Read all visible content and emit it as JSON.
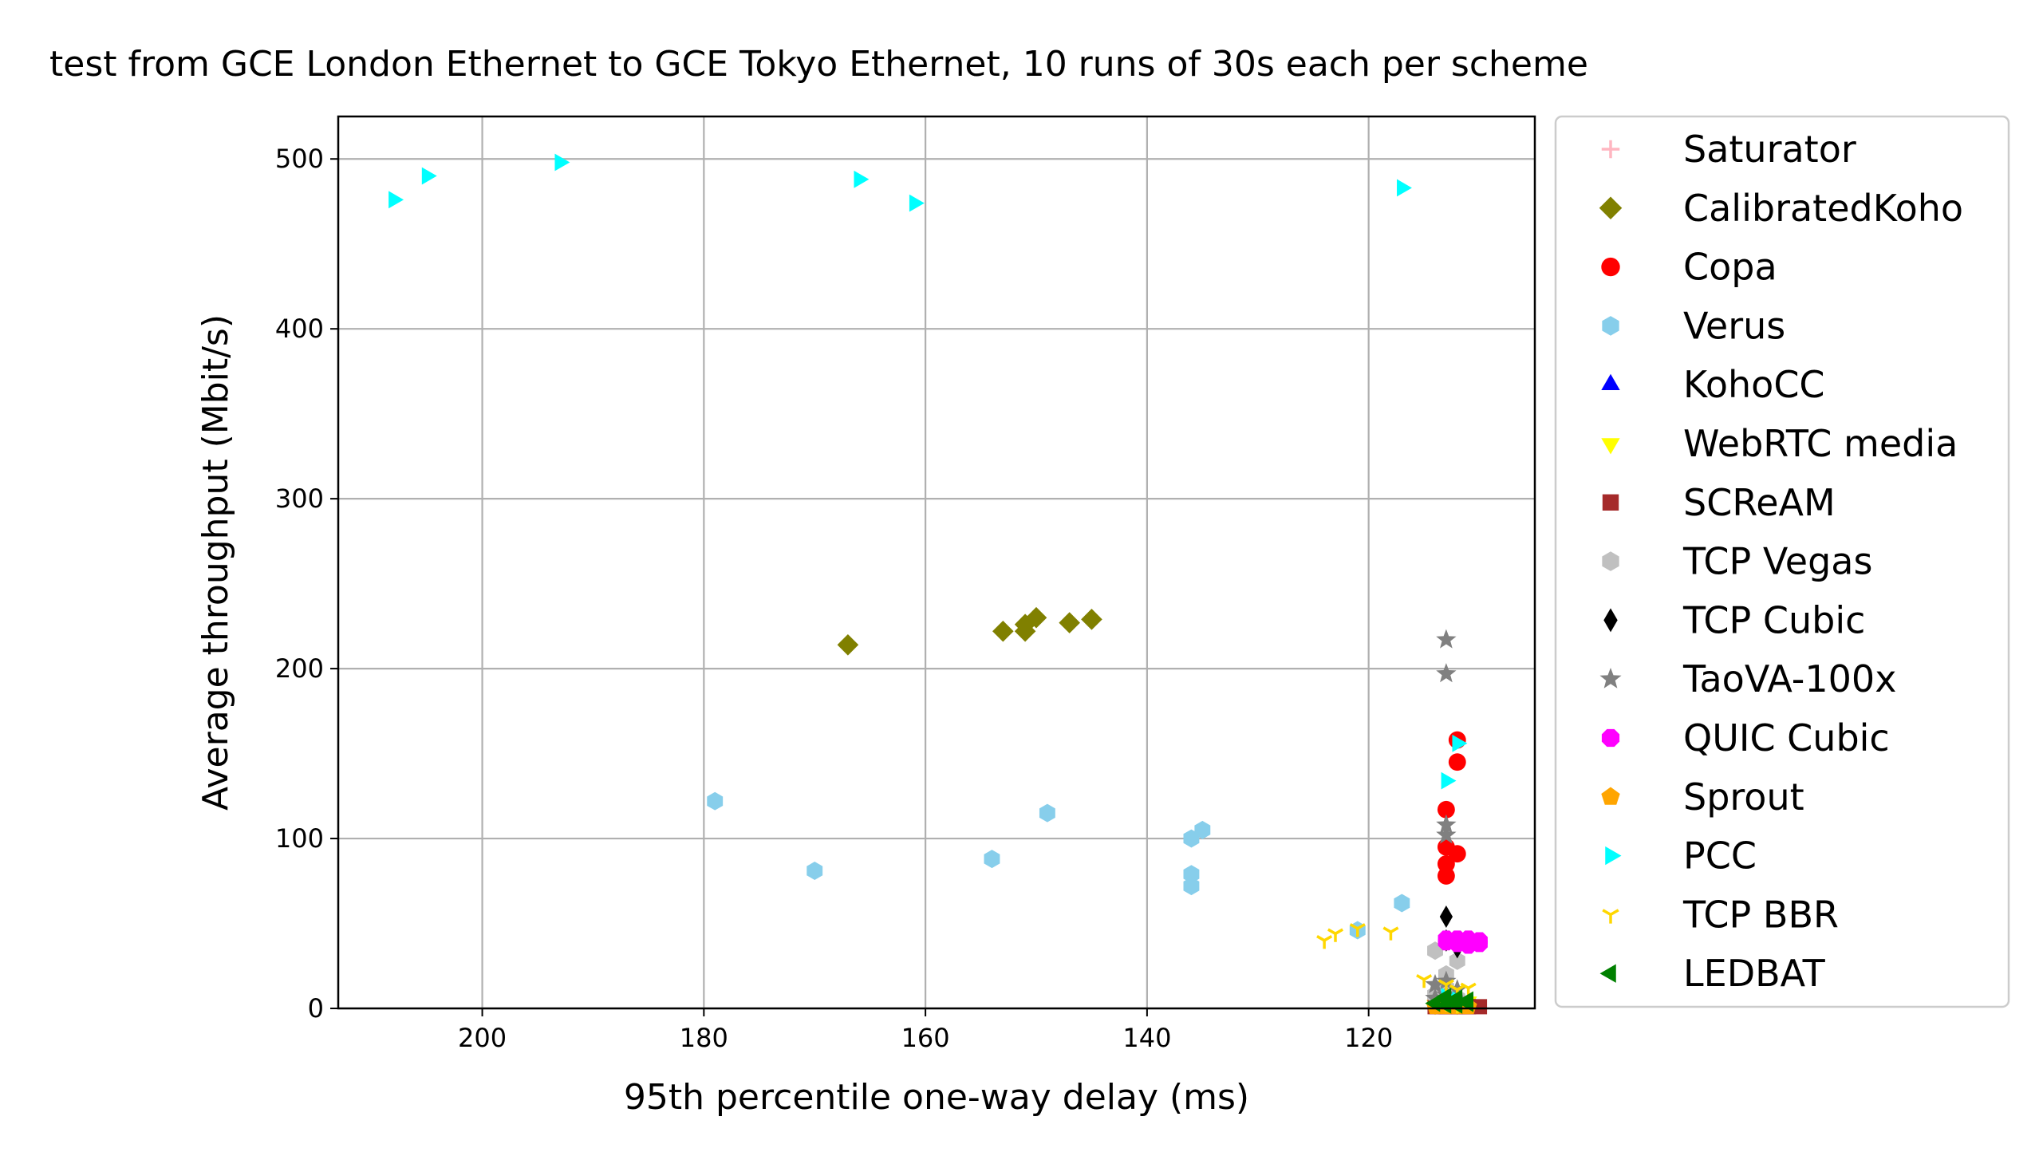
{
  "chart_data": {
    "type": "scatter",
    "title": "test from GCE London Ethernet to GCE Tokyo Ethernet, 10 runs of 30s each per scheme",
    "xlabel": "95th percentile one-way delay (ms)",
    "ylabel": "Average throughput (Mbit/s)",
    "xlim": [
      213,
      105
    ],
    "ylim": [
      0,
      525
    ],
    "x_inverted": true,
    "xticks": [
      200,
      180,
      160,
      140,
      120
    ],
    "yticks": [
      0,
      100,
      200,
      300,
      400,
      500
    ],
    "grid": true,
    "legend_position": "outside-right",
    "series": [
      {
        "name": "Saturator",
        "marker": "plus",
        "color": "#ffb6c1",
        "points": []
      },
      {
        "name": "CalibratedKoho",
        "marker": "diamond",
        "color": "#808000",
        "points": [
          [
            167,
            214
          ],
          [
            153,
            222
          ],
          [
            151,
            226
          ],
          [
            151,
            222
          ],
          [
            150,
            230
          ],
          [
            147,
            227
          ],
          [
            145,
            229
          ]
        ]
      },
      {
        "name": "Copa",
        "marker": "circle",
        "color": "#ff0000",
        "points": [
          [
            112,
            158
          ],
          [
            112,
            145
          ],
          [
            113,
            117
          ],
          [
            113,
            95
          ],
          [
            112,
            91
          ],
          [
            113,
            85
          ],
          [
            113,
            78
          ],
          [
            112,
            5
          ],
          [
            112,
            3
          ],
          [
            111,
            2
          ]
        ]
      },
      {
        "name": "Verus",
        "marker": "hexagon",
        "color": "#87ceeb",
        "points": [
          [
            179,
            122
          ],
          [
            170,
            81
          ],
          [
            154,
            88
          ],
          [
            149,
            115
          ],
          [
            136,
            100
          ],
          [
            135,
            105
          ],
          [
            136,
            79
          ],
          [
            136,
            72
          ],
          [
            121,
            46
          ],
          [
            117,
            62
          ]
        ]
      },
      {
        "name": "KohoCC",
        "marker": "triangle-up",
        "color": "#0000ff",
        "points": []
      },
      {
        "name": "WebRTC media",
        "marker": "triangle-down",
        "color": "#ffff00",
        "points": [
          [
            113,
            3
          ],
          [
            112,
            2
          ],
          [
            111,
            4
          ],
          [
            114,
            2
          ]
        ]
      },
      {
        "name": "SCReAM",
        "marker": "square",
        "color": "#a52a2a",
        "points": [
          [
            113,
            1
          ],
          [
            112,
            1
          ],
          [
            111,
            1
          ],
          [
            114,
            1
          ],
          [
            113,
            1
          ],
          [
            112,
            1
          ],
          [
            111,
            1
          ],
          [
            110,
            1
          ],
          [
            112,
            1
          ],
          [
            113,
            1
          ]
        ]
      },
      {
        "name": "TCP Vegas",
        "marker": "hexagon",
        "color": "#c0c0c0",
        "points": [
          [
            114,
            34
          ],
          [
            112,
            28
          ],
          [
            113,
            20
          ],
          [
            113,
            12
          ],
          [
            114,
            8
          ],
          [
            112,
            6
          ]
        ]
      },
      {
        "name": "TCP Cubic",
        "marker": "thin-diamond",
        "color": "#000000",
        "points": [
          [
            113,
            54
          ],
          [
            113,
            40
          ],
          [
            112,
            36
          ]
        ]
      },
      {
        "name": "TaoVA-100x",
        "marker": "star",
        "color": "#808080",
        "points": [
          [
            113,
            217
          ],
          [
            113,
            197
          ],
          [
            113,
            108
          ],
          [
            113,
            102
          ],
          [
            113,
            16
          ],
          [
            114,
            14
          ],
          [
            112,
            11
          ],
          [
            113,
            8
          ],
          [
            114,
            6
          ],
          [
            112,
            4
          ]
        ]
      },
      {
        "name": "QUIC Cubic",
        "marker": "octagon",
        "color": "#ff00ff",
        "points": [
          [
            113,
            41
          ],
          [
            112,
            40
          ],
          [
            111,
            41
          ],
          [
            112,
            38
          ],
          [
            110,
            40
          ],
          [
            111,
            37
          ],
          [
            112,
            41
          ],
          [
            113,
            39
          ],
          [
            111,
            39
          ],
          [
            110,
            38
          ]
        ]
      },
      {
        "name": "Sprout",
        "marker": "pentagon",
        "color": "#ffa500",
        "points": [
          [
            114,
            1
          ],
          [
            113,
            1
          ],
          [
            112,
            1
          ],
          [
            111,
            1
          ],
          [
            113,
            2
          ]
        ]
      },
      {
        "name": "PCC",
        "marker": "triangle-right",
        "color": "#00ffff",
        "points": [
          [
            208,
            476
          ],
          [
            205,
            490
          ],
          [
            193,
            498
          ],
          [
            166,
            488
          ],
          [
            161,
            474
          ],
          [
            117,
            483
          ],
          [
            112,
            156
          ],
          [
            113,
            134
          ],
          [
            113,
            7
          ],
          [
            112,
            5
          ]
        ]
      },
      {
        "name": "TCP BBR",
        "marker": "tri-down",
        "color": "#ffd700",
        "points": [
          [
            124,
            40
          ],
          [
            123,
            44
          ],
          [
            121,
            47
          ],
          [
            118,
            45
          ],
          [
            115,
            17
          ],
          [
            113,
            14
          ],
          [
            112,
            11
          ],
          [
            111,
            12
          ],
          [
            113,
            3
          ],
          [
            112,
            2
          ]
        ]
      },
      {
        "name": "LEDBAT",
        "marker": "triangle-left",
        "color": "#008000",
        "points": [
          [
            113,
            5
          ],
          [
            112,
            4
          ],
          [
            111,
            3
          ],
          [
            112,
            6
          ],
          [
            113,
            2
          ],
          [
            114,
            3
          ],
          [
            111,
            5
          ],
          [
            112,
            2
          ],
          [
            113,
            7
          ],
          [
            112,
            3
          ]
        ]
      }
    ]
  }
}
